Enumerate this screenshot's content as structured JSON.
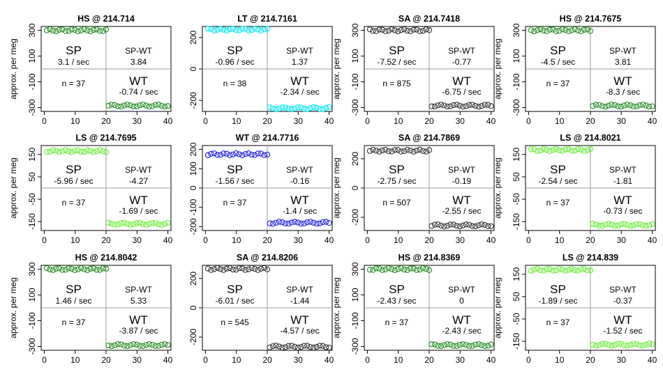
{
  "chart_data": [
    {
      "type": "scatter",
      "title": "HS @ 214.714",
      "ylabel": "approx. per meg",
      "ylim": [
        -330,
        330
      ],
      "yticks": [
        -300,
        -100,
        100,
        300
      ],
      "xlim": [
        -1,
        41
      ],
      "xticks": [
        0,
        10,
        20,
        30,
        40
      ],
      "color": "#228B22",
      "sp_level": 300,
      "wt_level": -285,
      "n_sp": 20,
      "n_wt": 20,
      "annotations": {
        "sp_label": "SP",
        "sp_rate": "3.1 / sec",
        "spwt_label": "SP-WT",
        "spwt_value": "3.84",
        "n_text": "n = 37",
        "wt_label": "WT",
        "wt_rate": "-0.74 / sec"
      }
    },
    {
      "type": "scatter",
      "title": "LT @ 214.7161",
      "ylabel": "",
      "ylim": [
        -270,
        270
      ],
      "yticks": [
        -200,
        0,
        200
      ],
      "xlim": [
        -1,
        41
      ],
      "xticks": [
        0,
        10,
        20,
        30,
        40
      ],
      "color": "#00E5EE",
      "sp_level": 250,
      "wt_level": -250,
      "n_sp": 20,
      "n_wt": 20,
      "annotations": {
        "sp_label": "SP",
        "sp_rate": "-0.96 / sec",
        "spwt_label": "SP-WT",
        "spwt_value": "1.37",
        "n_text": "n = 38",
        "wt_label": "WT",
        "wt_rate": "-2.34 / sec"
      }
    },
    {
      "type": "scatter",
      "title": "SA @ 214.7418",
      "ylabel": "approx. per meg",
      "ylim": [
        -330,
        330
      ],
      "yticks": [
        -300,
        -100,
        100,
        300
      ],
      "xlim": [
        -1,
        41
      ],
      "xticks": [
        0,
        10,
        20,
        30,
        40
      ],
      "color": "#333333",
      "sp_level": 300,
      "wt_level": -285,
      "n_sp": 20,
      "n_wt": 20,
      "annotations": {
        "sp_label": "SP",
        "sp_rate": "-7.52 / sec",
        "spwt_label": "SP-WT",
        "spwt_value": "-0.77",
        "n_text": "n = 875",
        "wt_label": "WT",
        "wt_rate": "-6.75 / sec"
      }
    },
    {
      "type": "scatter",
      "title": "HS @ 214.7675",
      "ylabel": "approx. per meg",
      "ylim": [
        -330,
        330
      ],
      "yticks": [
        -300,
        -100,
        100,
        300
      ],
      "xlim": [
        -1,
        41
      ],
      "xticks": [
        0,
        10,
        20,
        30,
        40
      ],
      "color": "#228B22",
      "sp_level": 300,
      "wt_level": -285,
      "n_sp": 20,
      "n_wt": 20,
      "annotations": {
        "sp_label": "SP",
        "sp_rate": "-4.5 / sec",
        "spwt_label": "SP-WT",
        "spwt_value": "3.81",
        "n_text": "n = 37",
        "wt_label": "WT",
        "wt_rate": "-8.3 / sec"
      }
    },
    {
      "type": "scatter",
      "title": "LS @ 214.7695",
      "ylabel": "approx. per meg",
      "ylim": [
        -190,
        190
      ],
      "yticks": [
        -150,
        -50,
        50,
        150
      ],
      "xlim": [
        -1,
        41
      ],
      "xticks": [
        0,
        10,
        20,
        30,
        40
      ],
      "color": "#66EE33",
      "sp_level": 165,
      "wt_level": -160,
      "n_sp": 20,
      "n_wt": 20,
      "annotations": {
        "sp_label": "SP",
        "sp_rate": "-5.96 / sec",
        "spwt_label": "SP-WT",
        "spwt_value": "-4.27",
        "n_text": "n = 37",
        "wt_label": "WT",
        "wt_rate": "-1.69 / sec"
      }
    },
    {
      "type": "scatter",
      "title": "WT @ 214.7716",
      "ylabel": "",
      "ylim": [
        -220,
        220
      ],
      "yticks": [
        -200,
        -100,
        0,
        100,
        200
      ],
      "xlim": [
        -1,
        41
      ],
      "xticks": [
        0,
        10,
        20,
        30,
        40
      ],
      "color": "#1E1EE0",
      "sp_level": 175,
      "wt_level": -180,
      "n_sp": 20,
      "n_wt": 20,
      "annotations": {
        "sp_label": "SP",
        "sp_rate": "-1.56 / sec",
        "spwt_label": "SP-WT",
        "spwt_value": "-0.16",
        "n_text": "n = 37",
        "wt_label": "WT",
        "wt_rate": "-1.4 / sec"
      }
    },
    {
      "type": "scatter",
      "title": "SA @ 214.7869",
      "ylabel": "approx. per meg",
      "ylim": [
        -290,
        290
      ],
      "yticks": [
        -200,
        0,
        200
      ],
      "xlim": [
        -1,
        41
      ],
      "xticks": [
        0,
        10,
        20,
        30,
        40
      ],
      "color": "#333333",
      "sp_level": 255,
      "wt_level": -255,
      "n_sp": 20,
      "n_wt": 20,
      "annotations": {
        "sp_label": "SP",
        "sp_rate": "-2.75 / sec",
        "spwt_label": "SP-WT",
        "spwt_value": "-0.19",
        "n_text": "n = 507",
        "wt_label": "WT",
        "wt_rate": "-2.55 / sec"
      }
    },
    {
      "type": "scatter",
      "title": "LS @ 214.8021",
      "ylabel": "approx. per meg",
      "ylim": [
        -190,
        190
      ],
      "yticks": [
        -150,
        -50,
        50,
        150
      ],
      "xlim": [
        -1,
        41
      ],
      "xticks": [
        0,
        10,
        20,
        30,
        40
      ],
      "color": "#66EE33",
      "sp_level": 170,
      "wt_level": -165,
      "n_sp": 20,
      "n_wt": 20,
      "annotations": {
        "sp_label": "SP",
        "sp_rate": "-2.54 / sec",
        "spwt_label": "SP-WT",
        "spwt_value": "-1.81",
        "n_text": "n = 37",
        "wt_label": "WT",
        "wt_rate": "-0.73 / sec"
      }
    },
    {
      "type": "scatter",
      "title": "HS @ 214.8042",
      "ylabel": "approx. per meg",
      "ylim": [
        -330,
        330
      ],
      "yticks": [
        -300,
        -100,
        100,
        300
      ],
      "xlim": [
        -1,
        41
      ],
      "xticks": [
        0,
        10,
        20,
        30,
        40
      ],
      "color": "#228B22",
      "sp_level": 300,
      "wt_level": -290,
      "n_sp": 20,
      "n_wt": 20,
      "annotations": {
        "sp_label": "SP",
        "sp_rate": "1.46 / sec",
        "spwt_label": "SP-WT",
        "spwt_value": "5.33",
        "n_text": "n = 37",
        "wt_label": "WT",
        "wt_rate": "-3.87 / sec"
      }
    },
    {
      "type": "scatter",
      "title": "SA @ 214.8206",
      "ylabel": "",
      "ylim": [
        -290,
        290
      ],
      "yticks": [
        -200,
        0,
        200
      ],
      "xlim": [
        -1,
        41
      ],
      "xticks": [
        0,
        10,
        20,
        30,
        40
      ],
      "color": "#333333",
      "sp_level": 265,
      "wt_level": -265,
      "n_sp": 20,
      "n_wt": 20,
      "annotations": {
        "sp_label": "SP",
        "sp_rate": "-6.01 / sec",
        "spwt_label": "SP-WT",
        "spwt_value": "-1.44",
        "n_text": "n = 545",
        "wt_label": "WT",
        "wt_rate": "-4.57 / sec"
      }
    },
    {
      "type": "scatter",
      "title": "HS @ 214.8369",
      "ylabel": "approx. per meg",
      "ylim": [
        -330,
        330
      ],
      "yticks": [
        -300,
        -100,
        100,
        300
      ],
      "xlim": [
        -1,
        41
      ],
      "xticks": [
        0,
        10,
        20,
        30,
        40
      ],
      "color": "#228B22",
      "sp_level": 300,
      "wt_level": -290,
      "n_sp": 20,
      "n_wt": 20,
      "annotations": {
        "sp_label": "SP",
        "sp_rate": "-2.43 / sec",
        "spwt_label": "SP-WT",
        "spwt_value": "0",
        "n_text": "n = 37",
        "wt_label": "WT",
        "wt_rate": "-2.43 / sec"
      }
    },
    {
      "type": "scatter",
      "title": "LS @ 214.839",
      "ylabel": "approx. per meg",
      "ylim": [
        -190,
        190
      ],
      "yticks": [
        -150,
        -50,
        50,
        150
      ],
      "xlim": [
        -1,
        41
      ],
      "xticks": [
        0,
        10,
        20,
        30,
        40
      ],
      "color": "#66EE33",
      "sp_level": 170,
      "wt_level": -165,
      "n_sp": 20,
      "n_wt": 20,
      "annotations": {
        "sp_label": "SP",
        "sp_rate": "-1.89 / sec",
        "spwt_label": "SP-WT",
        "spwt_value": "-0.37",
        "n_text": "n = 37",
        "wt_label": "WT",
        "wt_rate": "-1.52 / sec"
      }
    }
  ]
}
